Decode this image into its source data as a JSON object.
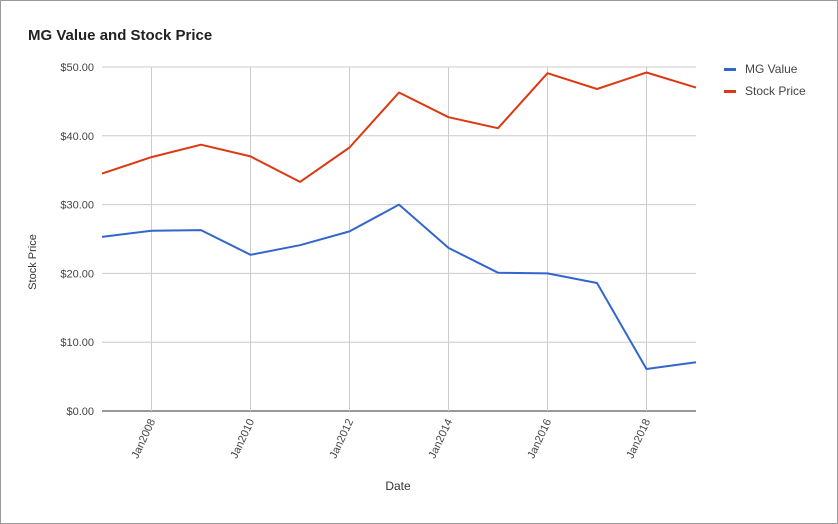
{
  "chart_data": {
    "type": "line",
    "title": "MG Value and Stock Price",
    "xlabel": "Date",
    "ylabel": "Stock Price",
    "x": [
      "2007-01",
      "2008-01",
      "2009-01",
      "2010-01",
      "2011-01",
      "2012-01",
      "2013-01",
      "2014-01",
      "2015-01",
      "2016-01",
      "2017-01",
      "2018-01",
      "2019-01"
    ],
    "x_tick_labels": [
      "Jan2008",
      "Jan2010",
      "Jan2012",
      "Jan2014",
      "Jan2016",
      "Jan2018"
    ],
    "x_tick_positions": [
      "2008-01",
      "2010-01",
      "2012-01",
      "2014-01",
      "2016-01",
      "2018-01"
    ],
    "y_ticks": [
      0,
      10,
      20,
      30,
      40,
      50
    ],
    "y_tick_labels": [
      "$0.00",
      "$10.00",
      "$20.00",
      "$30.00",
      "$40.00",
      "$50.00"
    ],
    "ylim": [
      0,
      50
    ],
    "grid": true,
    "legend_position": "right",
    "series": [
      {
        "name": "MG Value",
        "color": "#3366cc",
        "values": [
          25.3,
          26.2,
          26.3,
          22.7,
          24.1,
          26.1,
          30.0,
          23.7,
          20.1,
          20.0,
          18.6,
          6.1,
          7.1
        ]
      },
      {
        "name": "Stock Price",
        "color": "#dc3912",
        "values": [
          34.5,
          36.9,
          38.7,
          37.0,
          33.3,
          38.3,
          46.3,
          42.7,
          41.1,
          49.1,
          46.8,
          49.2,
          47.0
        ]
      }
    ]
  }
}
